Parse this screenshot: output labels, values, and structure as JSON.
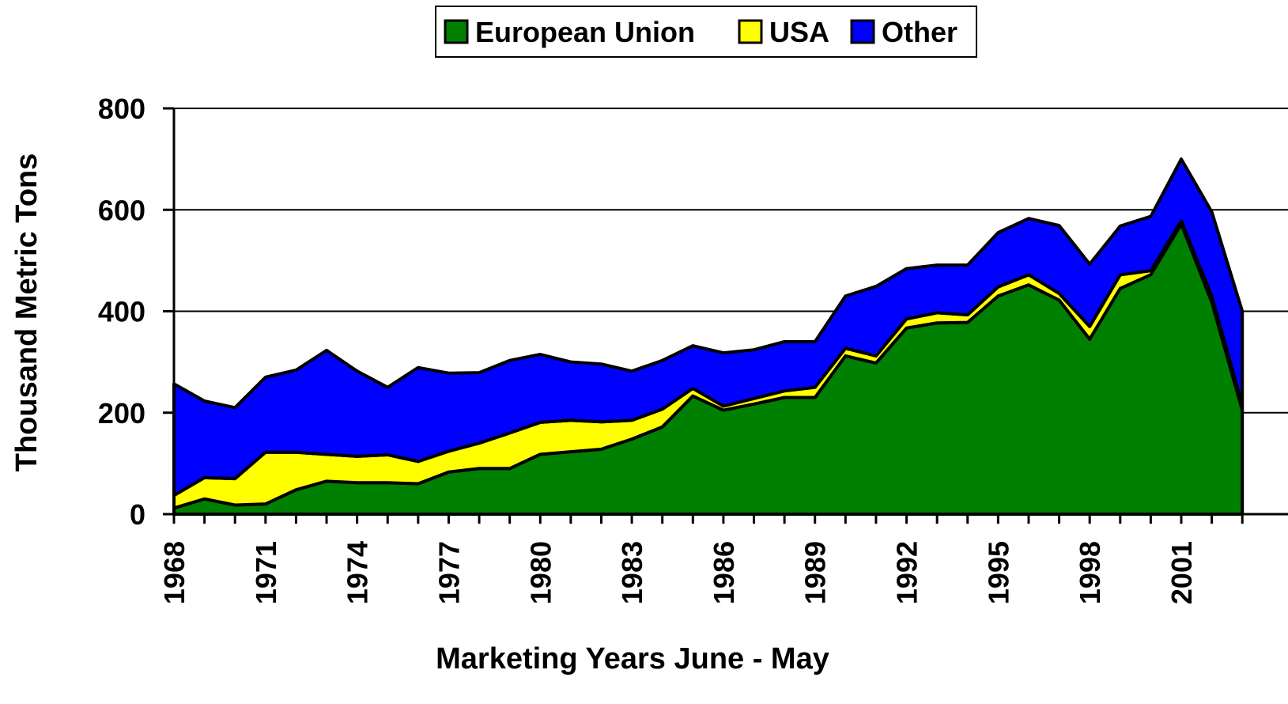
{
  "chart_data": {
    "type": "stacked_area",
    "x_label": "Marketing Years  June - May",
    "y_label": "Thousand Metric Tons",
    "categories": [
      "1968",
      null,
      null,
      "1971",
      null,
      null,
      "1974",
      null,
      null,
      "1977",
      null,
      null,
      "1980",
      null,
      null,
      "1983",
      null,
      null,
      "1986",
      null,
      null,
      "1989",
      null,
      null,
      "1992",
      null,
      null,
      "1995",
      null,
      null,
      "1998",
      null,
      null,
      "2001",
      null,
      null
    ],
    "series": [
      {
        "name": "European Union",
        "color": "#008000",
        "values": [
          12,
          30,
          18,
          20,
          48,
          65,
          62,
          62,
          60,
          83,
          90,
          90,
          118,
          123,
          128,
          148,
          172,
          233,
          205,
          217,
          230,
          230,
          312,
          298,
          367,
          377,
          378,
          430,
          452,
          422,
          345,
          445,
          472,
          572,
          418,
          205
        ]
      },
      {
        "name": "USA",
        "color": "#ffff00",
        "values": [
          25,
          42,
          52,
          102,
          74,
          53,
          52,
          55,
          44,
          41,
          50,
          70,
          63,
          62,
          54,
          37,
          35,
          15,
          8,
          11,
          13,
          20,
          15,
          14,
          18,
          20,
          15,
          18,
          20,
          13,
          25,
          27,
          8,
          6,
          12,
          10
        ]
      },
      {
        "name": "Other",
        "color": "#0000ff",
        "values": [
          220,
          151,
          140,
          148,
          162,
          205,
          168,
          133,
          185,
          154,
          139,
          143,
          134,
          115,
          114,
          97,
          96,
          84,
          105,
          96,
          97,
          90,
          103,
          137,
          99,
          94,
          98,
          107,
          111,
          134,
          123,
          96,
          107,
          122,
          166,
          185
        ]
      }
    ],
    "ylim": [
      0,
      800
    ],
    "yticks": [
      0,
      200,
      400,
      600,
      800
    ],
    "grid": true,
    "legend": "top"
  }
}
